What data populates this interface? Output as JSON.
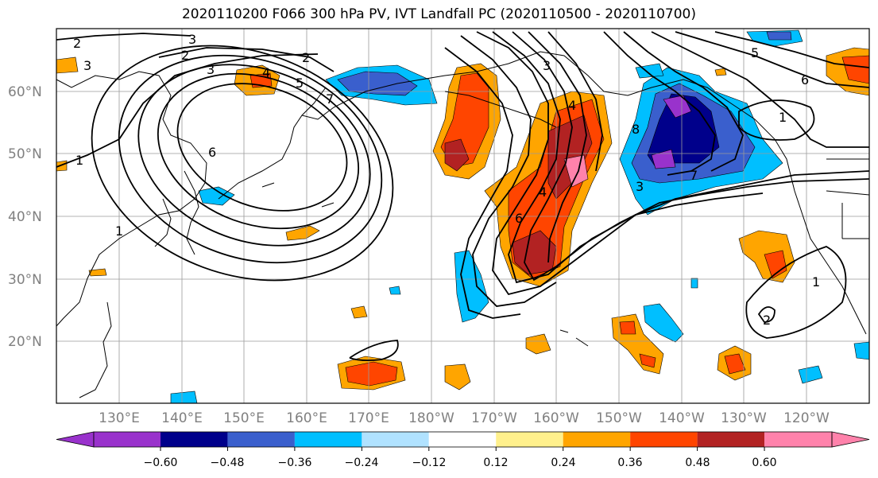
{
  "title": "2020110200 F066 300 hPa PV, IVT Landfall PC (2020110500 - 2020110700)",
  "lat_labels": [
    "60°N",
    "50°N",
    "40°N",
    "30°N",
    "20°N"
  ],
  "lon_labels": [
    "130°E",
    "140°E",
    "150°E",
    "160°E",
    "170°E",
    "180°W",
    "170°W",
    "160°W",
    "150°W",
    "140°W",
    "130°W",
    "120°W"
  ],
  "colorbar": {
    "ticks": [
      "−0.60",
      "−0.48",
      "−0.36",
      "−0.24",
      "−0.12",
      "0.12",
      "0.24",
      "0.36",
      "0.48",
      "0.60"
    ],
    "colors": [
      "#9932cc",
      "#00008b",
      "#3a5fcd",
      "#00bfff",
      "#b0e2ff",
      "#ffffff",
      "#fff08c",
      "#ffa500",
      "#ff4500",
      "#b22222",
      "#ff82ab"
    ]
  },
  "contour_labels": [
    "2",
    "3",
    "2",
    "3",
    "2",
    "3",
    "4",
    "5",
    "1",
    "6",
    "7",
    "1",
    "3",
    "4",
    "5",
    "6",
    "8",
    "3",
    "1",
    "4",
    "6",
    "7",
    "1",
    "2"
  ],
  "chart_data": {
    "type": "heatmap",
    "title": "2020110200 F066 300 hPa PV, IVT Landfall PC (2020110500 - 2020110700)",
    "projection": "PlateCarree",
    "lon_range": [
      "120°E",
      "115°W"
    ],
    "lat_range": [
      10,
      70
    ],
    "shaded_field_levels": [
      -0.6,
      -0.48,
      -0.36,
      -0.24,
      -0.12,
      0.12,
      0.24,
      0.36,
      0.48,
      0.6
    ],
    "contour_levels_labeled": [
      1,
      2,
      3,
      4,
      5,
      6,
      7,
      8
    ],
    "grid": true
  }
}
